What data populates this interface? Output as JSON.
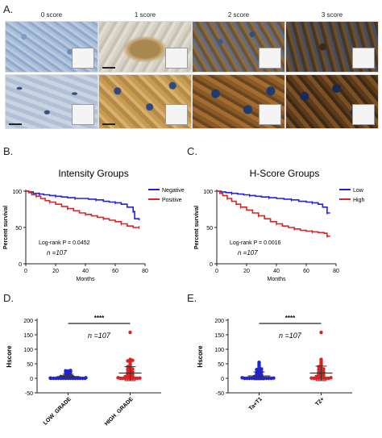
{
  "panel_a": {
    "letter": "A.",
    "columns": [
      "0 score",
      "1 score",
      "2 score",
      "3 score"
    ]
  },
  "chart_data": [
    {
      "id": "B",
      "letter": "B.",
      "type": "line",
      "title": "Intensity Groups",
      "xlabel": "Months",
      "ylabel": "Percent survival",
      "xlim": [
        0,
        80
      ],
      "ylim": [
        0,
        100
      ],
      "xticks": [
        0,
        20,
        40,
        60,
        80
      ],
      "yticks": [
        0,
        50,
        100
      ],
      "legend": "top-right",
      "annotation_logrank": "Log-rank P = 0.0452",
      "annotation_n": "n =107",
      "series": [
        {
          "name": "Negative",
          "color": "#2222dd",
          "x": [
            0,
            2,
            5,
            9,
            12,
            16,
            20,
            24,
            28,
            33,
            38,
            42,
            47,
            52,
            56,
            60,
            64,
            68,
            72,
            73,
            76
          ],
          "y": [
            100,
            99,
            97,
            96,
            95,
            94,
            93,
            92,
            91,
            90,
            90,
            89,
            88,
            86,
            85,
            84,
            82,
            78,
            72,
            62,
            60
          ]
        },
        {
          "name": "Positive",
          "color": "#dd2222",
          "x": [
            0,
            2,
            4,
            7,
            10,
            13,
            16,
            20,
            24,
            28,
            32,
            36,
            40,
            44,
            48,
            52,
            56,
            60,
            64,
            68,
            72,
            76
          ],
          "y": [
            100,
            98,
            95,
            93,
            90,
            87,
            85,
            82,
            79,
            76,
            73,
            70,
            68,
            66,
            64,
            62,
            60,
            58,
            55,
            52,
            50,
            50
          ]
        }
      ]
    },
    {
      "id": "C",
      "letter": "C.",
      "type": "line",
      "title": "H-Score Groups",
      "xlabel": "Months",
      "ylabel": "Percent survival",
      "xlim": [
        0,
        80
      ],
      "ylim": [
        0,
        100
      ],
      "xticks": [
        0,
        20,
        40,
        60,
        80
      ],
      "yticks": [
        0,
        50,
        100
      ],
      "legend": "top-right",
      "annotation_logrank": "Log-rank P = 0.0016",
      "annotation_n": "n =107",
      "series": [
        {
          "name": "Low",
          "color": "#2222dd",
          "x": [
            0,
            3,
            6,
            10,
            14,
            18,
            22,
            26,
            30,
            35,
            40,
            45,
            50,
            55,
            60,
            64,
            68,
            71,
            74,
            76
          ],
          "y": [
            100,
            99,
            98,
            97,
            96,
            95,
            94,
            93,
            92,
            91,
            90,
            89,
            88,
            86,
            85,
            84,
            82,
            78,
            70,
            70
          ]
        },
        {
          "name": "High",
          "color": "#dd2222",
          "x": [
            0,
            2,
            4,
            7,
            10,
            13,
            16,
            20,
            24,
            28,
            32,
            36,
            40,
            44,
            48,
            52,
            56,
            60,
            64,
            68,
            72,
            74,
            76
          ],
          "y": [
            100,
            97,
            94,
            90,
            86,
            82,
            78,
            74,
            70,
            66,
            62,
            58,
            55,
            52,
            50,
            48,
            46,
            45,
            44,
            43,
            42,
            38,
            38
          ]
        }
      ]
    },
    {
      "id": "D",
      "letter": "D.",
      "type": "scatter",
      "ylabel": "Hscore",
      "ylim": [
        -50,
        200
      ],
      "yticks": [
        -50,
        0,
        50,
        100,
        150,
        200
      ],
      "categories": [
        "LOW_GRADE",
        "HIGH_GRADE"
      ],
      "significance": "****",
      "annotation_n": "n =107",
      "groups": [
        {
          "category": "LOW_GRADE",
          "color": "#2222dd",
          "mean": 6,
          "sd_low": 0,
          "sd_high": 14,
          "values": [
            0,
            0,
            0,
            0,
            0,
            0,
            0,
            0,
            0,
            0,
            0,
            0,
            0,
            0,
            0,
            1,
            2,
            3,
            3,
            4,
            5,
            5,
            6,
            8,
            10,
            12,
            14,
            18,
            20,
            22,
            25,
            26,
            27
          ]
        },
        {
          "category": "HIGH_GRADE",
          "color": "#dd2222",
          "mean": 18,
          "sd_low": -8,
          "sd_high": 40,
          "values": [
            0,
            0,
            0,
            0,
            0,
            0,
            0,
            0,
            1,
            2,
            3,
            4,
            5,
            6,
            8,
            10,
            12,
            14,
            15,
            18,
            20,
            22,
            25,
            28,
            30,
            32,
            35,
            38,
            40,
            45,
            50,
            55,
            58,
            60,
            62,
            65,
            158
          ]
        }
      ]
    },
    {
      "id": "E",
      "letter": "E.",
      "type": "scatter",
      "ylabel": "Hscore",
      "ylim": [
        -50,
        200
      ],
      "yticks": [
        -50,
        0,
        50,
        100,
        150,
        200
      ],
      "categories": [
        "Ta+T1",
        "T2+"
      ],
      "significance": "****",
      "annotation_n": "n =107",
      "groups": [
        {
          "category": "Ta+T1",
          "color": "#2222dd",
          "mean": 8,
          "sd_low": -5,
          "sd_high": 22,
          "values": [
            0,
            0,
            0,
            0,
            0,
            0,
            0,
            0,
            0,
            0,
            0,
            0,
            1,
            2,
            3,
            4,
            5,
            6,
            8,
            10,
            12,
            14,
            15,
            18,
            20,
            22,
            25,
            28,
            30,
            32,
            35,
            40,
            45,
            50,
            55
          ]
        },
        {
          "category": "T2+",
          "color": "#dd2222",
          "mean": 18,
          "sd_low": -8,
          "sd_high": 42,
          "values": [
            0,
            0,
            0,
            0,
            0,
            0,
            0,
            1,
            2,
            3,
            4,
            5,
            6,
            8,
            10,
            12,
            14,
            15,
            18,
            20,
            22,
            25,
            28,
            30,
            32,
            35,
            38,
            40,
            45,
            50,
            55,
            60,
            65,
            158
          ]
        }
      ]
    }
  ]
}
